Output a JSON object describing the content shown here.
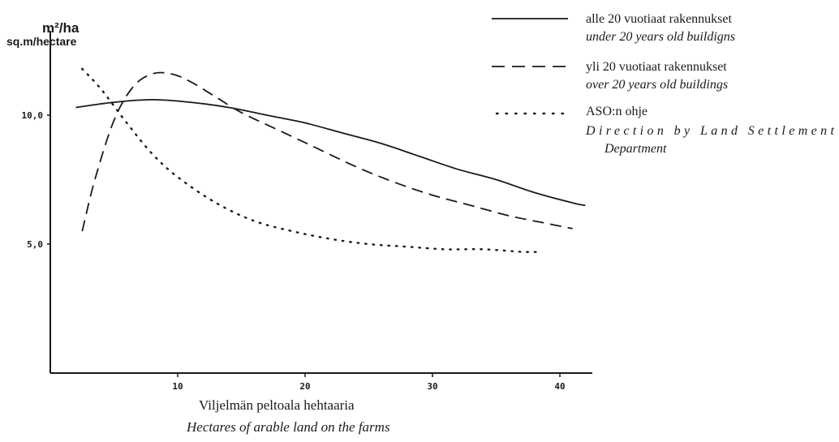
{
  "chart_data": {
    "type": "line",
    "ylabel_unit": "m²/ha",
    "ylabel": "sq.m/hectare",
    "xlabel": "Viljelmän peltoala hehtaaria",
    "xlabel_en": "Hectares of arable land on the farms",
    "x_ticks": [
      "10",
      "20",
      "30",
      "40"
    ],
    "y_ticks": [
      "5,0",
      "10,0"
    ],
    "xlim": [
      0,
      42
    ],
    "ylim": [
      0,
      14.6
    ],
    "grid": false,
    "legend_position": "top-right",
    "series": [
      {
        "name": "alle 20 vuotiaat rakennukset",
        "name_en": "under 20 years old buildigns",
        "style": "solid",
        "x": [
          2,
          5,
          8,
          11,
          14,
          17,
          20,
          23,
          26,
          29,
          32,
          35,
          38,
          41,
          42
        ],
        "y": [
          10.3,
          10.5,
          10.6,
          10.5,
          10.3,
          10.0,
          9.7,
          9.3,
          8.9,
          8.4,
          7.9,
          7.5,
          7.0,
          6.6,
          6.5
        ]
      },
      {
        "name": "yli 20 vuotiaat rakennukset",
        "name_en": "over 20 years old buildings",
        "style": "dashed",
        "x": [
          2.5,
          3.5,
          5,
          6.5,
          8,
          9.5,
          11,
          13,
          15,
          18,
          21,
          24,
          27,
          30,
          33,
          36,
          39,
          41
        ],
        "y": [
          5.5,
          7.5,
          9.8,
          11.1,
          11.6,
          11.6,
          11.3,
          10.7,
          10.1,
          9.4,
          8.7,
          8.0,
          7.4,
          6.9,
          6.5,
          6.1,
          5.8,
          5.6
        ]
      },
      {
        "name": "ASO:n ohje",
        "name_en": "Direction by Land Settlement Department",
        "style": "dotted",
        "x": [
          2.5,
          4,
          6,
          8,
          10,
          13,
          16,
          19,
          22,
          25,
          28,
          31,
          34,
          37,
          38.5
        ],
        "y": [
          11.8,
          11.0,
          9.7,
          8.5,
          7.6,
          6.6,
          5.9,
          5.5,
          5.2,
          5.0,
          4.9,
          4.8,
          4.8,
          4.7,
          4.7
        ]
      }
    ]
  }
}
